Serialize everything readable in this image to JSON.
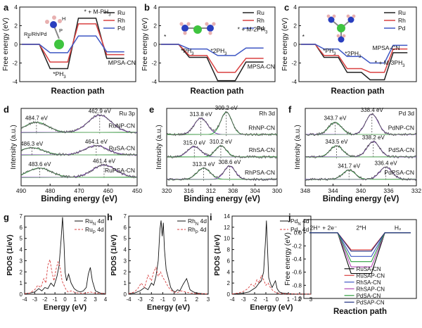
{
  "panels": [
    {
      "id": "a",
      "letter": "a",
      "type": "energy_path",
      "xlabel": "Reaction path",
      "ylabel": "Free energy (eV)",
      "ylim": [
        -4,
        4
      ],
      "yticks": [
        -4,
        -2,
        0,
        2,
        4
      ],
      "series": [
        {
          "name": "Ru",
          "color": "#222222",
          "levels": [
            0,
            -2.6,
            2.8,
            -1.5
          ]
        },
        {
          "name": "Rh",
          "color": "#d94040",
          "levels": [
            0,
            -1.9,
            2.2,
            -1.1
          ]
        },
        {
          "name": "Pd",
          "color": "#3f57c4",
          "levels": [
            0,
            -0.9,
            0.9,
            -0.8
          ]
        }
      ],
      "annotations": [
        {
          "text": "*",
          "x": 0.2,
          "y": 0.4
        },
        {
          "text": "*PH",
          "sub": "3",
          "x": 1.1,
          "y": -3.4
        },
        {
          "text": "* + M-PH",
          "sub": "3",
          "x": 2.2,
          "y": 3.3
        },
        {
          "text": "MPSA-CN",
          "x": 3.05,
          "y": -2.2
        }
      ],
      "molecule_label": "Ru/Rh/Pd",
      "molecule_atoms": [
        "P",
        "H"
      ]
    },
    {
      "id": "b",
      "letter": "b",
      "type": "energy_path",
      "xlabel": "Reaction path",
      "ylabel": "Free energy (eV)",
      "ylim": [
        -4,
        4
      ],
      "yticks": [
        -4,
        -2,
        0,
        2,
        4
      ],
      "series": [
        {
          "name": "Ru",
          "color": "#222222",
          "levels": [
            0,
            -1.4,
            -3.9,
            -1.9
          ]
        },
        {
          "name": "Rh",
          "color": "#d94040",
          "levels": [
            0,
            -1.2,
            -3.0,
            -1.5
          ]
        },
        {
          "name": "Pd",
          "color": "#3f57c4",
          "levels": [
            0,
            -0.5,
            -1.2,
            -0.4
          ]
        }
      ],
      "annotations": [
        {
          "text": "*",
          "x": 0.1,
          "y": 0.6
        },
        {
          "text": "*PH",
          "sub": "3",
          "x": 0.7,
          "y": -0.9
        },
        {
          "text": "*2PH",
          "sub": "3",
          "x": 1.75,
          "y": -0.9
        },
        {
          "text": "* + M-2PH",
          "sub": "3",
          "x": 2.7,
          "y": 1.4
        },
        {
          "text": "MPSA-CN",
          "x": 3.05,
          "y": -2.6
        }
      ]
    },
    {
      "id": "c",
      "letter": "c",
      "type": "energy_path",
      "xlabel": "Reaction path",
      "ylabel": "Free energy (eV)",
      "ylim": [
        -4,
        4
      ],
      "yticks": [
        -4,
        -2,
        0,
        2,
        4
      ],
      "series": [
        {
          "name": "Ru",
          "color": "#222222",
          "levels": [
            0,
            -1.4,
            -3.0,
            -3.8,
            -0.9
          ]
        },
        {
          "name": "Rh",
          "color": "#d94040",
          "levels": [
            0,
            -1.2,
            -2.6,
            -3.0,
            -0.5
          ]
        },
        {
          "name": "Pd",
          "color": "#3f57c4",
          "levels": [
            0,
            -0.5,
            -1.3,
            -2.0,
            -0.1
          ]
        }
      ],
      "annotations": [
        {
          "text": "*",
          "x": 0.05,
          "y": 0.6
        },
        {
          "text": "*PH",
          "sub": "3",
          "x": 0.95,
          "y": -0.9
        },
        {
          "text": "*2PH",
          "sub": "3",
          "x": 1.9,
          "y": -1.2
        },
        {
          "text": "MPSA-CN",
          "x": 3.1,
          "y": -0.6
        },
        {
          "text": "* + M-3PH",
          "sub": "3",
          "x": 3.2,
          "y": -2.2
        }
      ]
    },
    {
      "id": "d",
      "letter": "d",
      "type": "xps",
      "title": "Ru 3p",
      "xlabel": "Binding energy (eV)",
      "ylabel": "Intensity (a.u.)",
      "xlim": [
        490,
        450
      ],
      "xticks": [
        490,
        480,
        470,
        460,
        450
      ],
      "traces": [
        {
          "label": "RuNP-CN",
          "offset": 2.3,
          "peaks": [
            {
              "pos": 484.7,
              "amp": 0.5,
              "w": 4,
              "label": "484.7 eV",
              "color": "#2e9e3f"
            },
            {
              "pos": 462.9,
              "amp": 0.85,
              "w": 4,
              "label": "462.9 eV",
              "color": "#7a3db8"
            }
          ]
        },
        {
          "label": "RuSA-CN",
          "offset": 1.2,
          "peaks": [
            {
              "pos": 486.3,
              "amp": 0.35,
              "w": 4,
              "label": "486.3 eV",
              "color": "#2e9e3f"
            },
            {
              "pos": 464.1,
              "amp": 0.45,
              "w": 4,
              "label": "464.1 eV",
              "color": "#7a3db8"
            }
          ]
        },
        {
          "label": "RuPSA-CN",
          "offset": 0.1,
          "peaks": [
            {
              "pos": 483.6,
              "amp": 0.45,
              "w": 4,
              "label": "483.6 eV",
              "color": "#2e9e3f"
            },
            {
              "pos": 461.4,
              "amp": 0.6,
              "w": 4,
              "label": "461.4 eV",
              "color": "#7a3db8"
            }
          ]
        }
      ]
    },
    {
      "id": "e",
      "letter": "e",
      "type": "xps",
      "title": "Rh 3d",
      "xlabel": "Binding energy (eV)",
      "ylabel": "Intensity (a.u.)",
      "xlim": [
        320,
        300
      ],
      "xticks": [
        320,
        316,
        312,
        308,
        304,
        300
      ],
      "traces": [
        {
          "label": "RhNP-CN",
          "offset": 2.2,
          "peaks": [
            {
              "pos": 313.8,
              "amp": 0.8,
              "w": 1.2,
              "label": "313.8 eV",
              "color": "#7a3db8"
            },
            {
              "pos": 309.2,
              "amp": 1.1,
              "w": 1.0,
              "label": "309.2 eV",
              "color": "#2e9e3f"
            }
          ]
        },
        {
          "label": "RhSA-CN",
          "offset": 1.1,
          "peaks": [
            {
              "pos": 315.0,
              "amp": 0.5,
              "w": 1.2,
              "label": "315.0 eV",
              "color": "#7a3db8"
            },
            {
              "pos": 310.2,
              "amp": 0.55,
              "w": 1.0,
              "label": "310.2 eV",
              "color": "#2e9e3f"
            }
          ]
        },
        {
          "label": "RhPSA-CN",
          "offset": 0.0,
          "peaks": [
            {
              "pos": 313.3,
              "amp": 0.55,
              "w": 1.2,
              "label": "313.3 eV",
              "color": "#2e9e3f"
            },
            {
              "pos": 308.6,
              "amp": 0.65,
              "w": 1.0,
              "label": "308.6 eV",
              "color": "#7a3db8"
            }
          ]
        }
      ]
    },
    {
      "id": "f",
      "letter": "f",
      "type": "xps",
      "title": "Pd 3d",
      "xlabel": "Binding energy (eV)",
      "ylabel": "Intensity (a.u.)",
      "xlim": [
        348,
        332
      ],
      "xticks": [
        348,
        344,
        340,
        336,
        332
      ],
      "traces": [
        {
          "label": "PdNP-CN",
          "offset": 2.2,
          "peaks": [
            {
              "pos": 343.7,
              "amp": 0.6,
              "w": 0.9,
              "label": "343.7 eV",
              "color": "#2e9e3f"
            },
            {
              "pos": 338.4,
              "amp": 1.0,
              "w": 0.9,
              "label": "338.4 eV",
              "color": "#7a3db8"
            }
          ]
        },
        {
          "label": "PdSA-CN",
          "offset": 1.1,
          "peaks": [
            {
              "pos": 343.5,
              "amp": 0.55,
              "w": 0.9,
              "label": "343.5 eV",
              "color": "#2e9e3f"
            },
            {
              "pos": 338.2,
              "amp": 0.75,
              "w": 0.9,
              "label": "338.2 eV",
              "color": "#7a3db8"
            }
          ]
        },
        {
          "label": "PdPSA-CN",
          "offset": 0.0,
          "peaks": [
            {
              "pos": 341.7,
              "amp": 0.45,
              "w": 0.9,
              "label": "341.7 eV",
              "color": "#2e9e3f"
            },
            {
              "pos": 336.4,
              "amp": 0.6,
              "w": 0.9,
              "label": "336.4 eV",
              "color": "#7a3db8"
            }
          ]
        }
      ]
    },
    {
      "id": "g",
      "letter": "g",
      "type": "pdos",
      "xlabel": "Energy (eV)",
      "ylabel": "PDOS (1/eV)",
      "xlim": [
        -4,
        4
      ],
      "xticks": [
        -4,
        -3,
        -2,
        -1,
        0,
        1,
        2,
        3,
        4
      ],
      "ylim": [
        0,
        7
      ],
      "yticks": [
        0,
        1,
        2,
        3,
        4,
        5,
        6,
        7
      ],
      "series": [
        {
          "name": "Ru",
          "sub": "N",
          "suffix": " 4d",
          "color": "#111111",
          "dash": false,
          "x": [
            -4,
            -3.5,
            -3,
            -2.6,
            -2.3,
            -2,
            -1.7,
            -1.4,
            -1.1,
            -0.8,
            -0.6,
            -0.4,
            -0.25,
            -0.1,
            0,
            0.15,
            0.35,
            0.6,
            0.9,
            1.2,
            1.5,
            1.8,
            2.1,
            2.3,
            2.5,
            2.7,
            3,
            3.5,
            4
          ],
          "y": [
            0.05,
            0.1,
            0.2,
            0.5,
            0.3,
            0.6,
            0.5,
            1.0,
            0.7,
            1.6,
            2.5,
            4.8,
            6.9,
            4.5,
            2.0,
            1.2,
            1.8,
            1.0,
            0.5,
            0.3,
            0.2,
            0.3,
            0.6,
            1.8,
            2.4,
            1.2,
            0.3,
            0.1,
            0.05
          ]
        },
        {
          "name": "Ru",
          "sub": "P",
          "suffix": " 4d",
          "color": "#d94040",
          "dash": true,
          "x": [
            -4,
            -3.5,
            -3,
            -2.7,
            -2.4,
            -2.1,
            -1.9,
            -1.7,
            -1.5,
            -1.3,
            -1.1,
            -0.9,
            -0.7,
            -0.5,
            -0.3,
            -0.1,
            0.1,
            0.3,
            0.6,
            1,
            1.5,
            2,
            2.5,
            3,
            4
          ],
          "y": [
            0.05,
            0.1,
            0.4,
            0.8,
            0.6,
            1.4,
            1.0,
            2.6,
            3.1,
            2.0,
            1.2,
            2.2,
            2.9,
            2.5,
            1.2,
            0.8,
            0.4,
            0.2,
            0.3,
            0.15,
            0.1,
            0.1,
            0.2,
            0.1,
            0.05
          ]
        }
      ]
    },
    {
      "id": "h",
      "letter": "h",
      "type": "pdos",
      "xlabel": "Energy (eV)",
      "ylabel": "PDOS (1/eV)",
      "xlim": [
        -4,
        3
      ],
      "xticks": [
        -4,
        -3,
        -2,
        -1,
        0,
        1,
        2,
        3
      ],
      "ylim": [
        0,
        7
      ],
      "yticks": [
        0,
        1,
        2,
        3,
        4,
        5,
        6,
        7
      ],
      "series": [
        {
          "name": "Rh",
          "sub": "N",
          "suffix": " 4d",
          "color": "#111111",
          "dash": false,
          "x": [
            -4,
            -3.5,
            -3,
            -2.6,
            -2.3,
            -2,
            -1.8,
            -1.6,
            -1.4,
            -1.25,
            -1.15,
            -1.05,
            -0.95,
            -0.85,
            -0.7,
            -0.5,
            -0.3,
            -0.1,
            0.1,
            0.3,
            0.5,
            0.8,
            1.1,
            1.4,
            1.7,
            2,
            2.5,
            3
          ],
          "y": [
            0.05,
            0.1,
            0.3,
            0.6,
            0.4,
            1.0,
            0.8,
            1.6,
            3.0,
            5.8,
            6.6,
            5.2,
            6.4,
            4.0,
            2.2,
            1.4,
            0.6,
            0.3,
            0.2,
            0.4,
            0.3,
            0.9,
            1.4,
            0.4,
            0.2,
            0.1,
            0.05,
            0.02
          ]
        },
        {
          "name": "Rh",
          "sub": "P",
          "suffix": " 4d",
          "color": "#d94040",
          "dash": true,
          "x": [
            -4,
            -3.5,
            -3.2,
            -2.9,
            -2.6,
            -2.3,
            -2,
            -1.8,
            -1.6,
            -1.4,
            -1.2,
            -1,
            -0.8,
            -0.6,
            -0.4,
            -0.2,
            0,
            0.3,
            0.6,
            1,
            1.5,
            2,
            3
          ],
          "y": [
            0.05,
            0.2,
            0.5,
            1.0,
            0.6,
            1.7,
            1.2,
            2.0,
            2.4,
            1.6,
            2.0,
            1.5,
            1.2,
            0.8,
            0.5,
            0.3,
            0.2,
            0.15,
            0.3,
            0.2,
            0.1,
            0.05,
            0.02
          ]
        }
      ]
    },
    {
      "id": "i",
      "letter": "i",
      "type": "pdos",
      "xlabel": "Energy (eV)",
      "ylabel": "PDOS (1/eV)",
      "xlim": [
        -4,
        3
      ],
      "xticks": [
        -4,
        -3,
        -2,
        -1,
        0,
        1,
        2,
        3
      ],
      "ylim": [
        0,
        14
      ],
      "yticks": [
        0,
        2,
        4,
        6,
        8,
        10,
        12,
        14
      ],
      "series": [
        {
          "name": "Pd",
          "sub": "N",
          "suffix": " 4d",
          "color": "#111111",
          "dash": false,
          "x": [
            -4,
            -3.5,
            -3,
            -2.5,
            -2.2,
            -1.9,
            -1.6,
            -1.4,
            -1.2,
            -1.05,
            -0.95,
            -0.85,
            -0.75,
            -0.6,
            -0.45,
            -0.3,
            -0.15,
            0,
            0.2,
            0.5,
            1,
            1.5,
            2,
            3
          ],
          "y": [
            0.05,
            0.1,
            0.2,
            0.4,
            0.8,
            1.2,
            2.0,
            2.4,
            4.0,
            9.0,
            13.2,
            8.0,
            3.0,
            2.0,
            1.2,
            1.8,
            2.4,
            1.0,
            0.4,
            0.2,
            0.1,
            0.05,
            0.03,
            0.02
          ]
        },
        {
          "name": "Pd",
          "sub": "P",
          "suffix": " 4d",
          "color": "#d94040",
          "dash": true,
          "x": [
            -4,
            -3.5,
            -3,
            -2.6,
            -2.3,
            -2,
            -1.8,
            -1.6,
            -1.4,
            -1.2,
            -1,
            -0.8,
            -0.6,
            -0.4,
            -0.2,
            0,
            0.5,
            1,
            2,
            3
          ],
          "y": [
            0.05,
            0.2,
            0.5,
            1.0,
            1.8,
            1.4,
            2.6,
            2.0,
            3.4,
            2.6,
            1.6,
            2.0,
            1.2,
            0.7,
            0.4,
            0.2,
            0.1,
            0.05,
            0.03,
            0.02
          ]
        }
      ]
    },
    {
      "id": "j",
      "letter": "j",
      "type": "her",
      "xlabel": "Reaction path",
      "ylabel": "Free energy (eV)",
      "ylim": [
        -1.0,
        0.2
      ],
      "yticks": [
        -1.0,
        -0.8,
        -0.6,
        -0.4,
        -0.2,
        0.0
      ],
      "states": [
        "2H⁺ + 2e⁻",
        "2*H",
        "H₂"
      ],
      "series": [
        {
          "name": "RuSA-CN",
          "color": "#111111",
          "mid": -0.62
        },
        {
          "name": "RuSAP-CN",
          "color": "#d94040",
          "mid": -0.26
        },
        {
          "name": "RhSA-CN",
          "color": "#3f57c4",
          "mid": -0.36
        },
        {
          "name": "RhSAP-CN",
          "color": "#b347b3",
          "mid": -0.52
        },
        {
          "name": "PdSA-CN",
          "color": "#2e9e3f",
          "mid": -0.44
        },
        {
          "name": "PdSAP-CN",
          "color": "#1f2f80",
          "mid": -0.28
        }
      ]
    }
  ]
}
